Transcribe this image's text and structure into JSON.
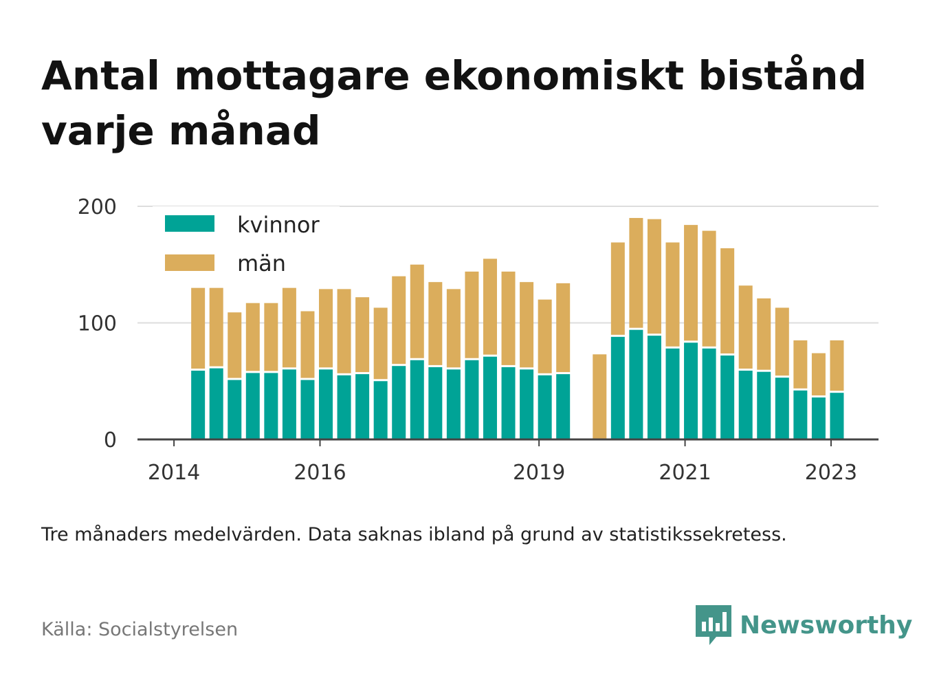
{
  "title": "Antal mottagare ekonomiskt bistånd varje månad",
  "note": "Tre månaders medelvärden. Data saknas ibland på grund av statistikssekretess.",
  "source": "Källa: Socialstyrelsen",
  "brand": "Newsworthy",
  "colors": {
    "kvinnor": "#00a396",
    "man": "#dbad5c",
    "grid": "#dddddd",
    "axis": "#444444",
    "brand": "#44958a"
  },
  "chart_data": {
    "type": "bar",
    "stacked": true,
    "ylim": [
      0,
      200
    ],
    "yticks": [
      0,
      100,
      200
    ],
    "xticks": [
      {
        "label": "2014",
        "x": 2014.0
      },
      {
        "label": "2016",
        "x": 2016.0
      },
      {
        "label": "2019",
        "x": 2019.0
      },
      {
        "label": "2021",
        "x": 2021.0
      },
      {
        "label": "2023",
        "x": 2023.0
      }
    ],
    "xlim": [
      2013.5,
      2023.65
    ],
    "legend": "top-left",
    "x": [
      2014.33,
      2014.58,
      2014.83,
      2015.08,
      2015.33,
      2015.58,
      2015.83,
      2016.08,
      2016.33,
      2016.58,
      2016.83,
      2017.08,
      2017.33,
      2017.58,
      2017.83,
      2018.08,
      2018.33,
      2018.58,
      2018.83,
      2019.08,
      2019.33,
      2019.83,
      2020.08,
      2020.33,
      2020.58,
      2020.83,
      2021.08,
      2021.33,
      2021.58,
      2021.83,
      2022.08,
      2022.33,
      2022.58,
      2022.83,
      2023.08
    ],
    "series": [
      {
        "name": "kvinnor",
        "values": [
          59,
          61,
          51,
          57,
          57,
          60,
          51,
          60,
          55,
          56,
          50,
          63,
          68,
          62,
          60,
          68,
          71,
          62,
          60,
          55,
          56,
          null,
          88,
          94,
          89,
          78,
          83,
          78,
          72,
          59,
          58,
          53,
          42,
          36,
          40
        ]
      },
      {
        "name": "män",
        "values": [
          71,
          69,
          58,
          60,
          60,
          70,
          59,
          69,
          74,
          66,
          63,
          77,
          82,
          73,
          69,
          76,
          84,
          82,
          75,
          65,
          78,
          73,
          81,
          96,
          100,
          91,
          101,
          101,
          92,
          73,
          63,
          60,
          43,
          38,
          45
        ]
      }
    ]
  }
}
